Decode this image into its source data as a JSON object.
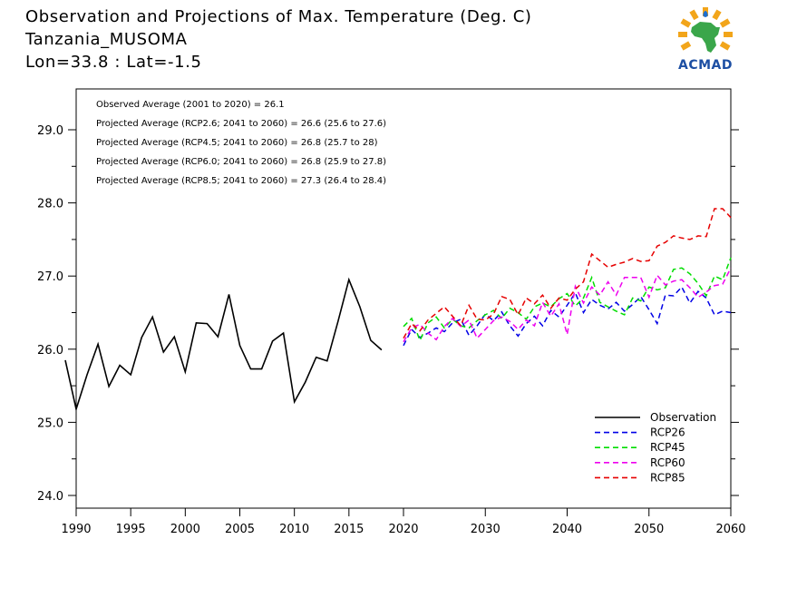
{
  "header": {
    "line1": "Observation and Projections of Max. Temperature (Deg. C)",
    "line2": "Tanzania_MUSOMA",
    "line3": "Lon=33.8 : Lat=-1.5"
  },
  "logo": {
    "text": "ACMAD",
    "icon": "africa-map-icon"
  },
  "chart_data": {
    "type": "line",
    "title": "Observation and Projections of Max. Temperature (Deg. C)",
    "xlabel": "",
    "ylabel": "",
    "xlim": [
      1990,
      2060
    ],
    "ylim": [
      23.8,
      29.5
    ],
    "x_ticks": [
      "1990",
      "1995",
      "2000",
      "2005",
      "2010",
      "2015",
      "2020",
      "2030",
      "2040",
      "2050",
      "2060"
    ],
    "x_tick_values": [
      1990,
      1995,
      2000,
      2005,
      2010,
      2015,
      2020,
      2030,
      2040,
      2050,
      2060
    ],
    "y_ticks": [
      "24.0",
      "25.0",
      "26.0",
      "27.0",
      "28.0",
      "29.0"
    ],
    "y_tick_values": [
      24,
      25,
      26,
      27,
      28,
      29
    ],
    "annotations": [
      "Observed Average (2001 to 2020) = 26.1",
      "Projected Average (RCP2.6; 2041 to 2060) = 26.6 (25.6 to 27.6)",
      "Projected Average (RCP4.5; 2041 to 2060) = 26.8 (25.7 to 28)",
      "Projected Average (RCP6.0; 2041 to 2060) = 26.8 (25.9 to 27.8)",
      "Projected Average (RCP8.5; 2041 to 2060) = 27.3 (26.4 to 28.4)"
    ],
    "legend_position": "bottom-right",
    "series": [
      {
        "name": "Observation",
        "color": "#000000",
        "dash": "solid",
        "x": [
          1989,
          1990,
          1991,
          1992,
          1993,
          1994,
          1995,
          1996,
          1997,
          1998,
          1999,
          2000,
          2001,
          2002,
          2003,
          2004,
          2005,
          2006,
          2007,
          2008,
          2009,
          2010,
          2011,
          2012,
          2013,
          2014,
          2015,
          2016,
          2017,
          2018,
          2019
        ],
        "values": [
          25.85,
          25.18,
          25.65,
          26.07,
          25.49,
          25.78,
          25.65,
          26.16,
          26.44,
          25.96,
          26.17,
          25.69,
          26.36,
          26.35,
          26.17,
          26.75,
          26.05,
          25.73,
          25.73,
          26.11,
          26.22,
          25.28,
          25.55,
          25.89,
          25.84,
          26.38,
          26.95,
          26.58,
          26.12,
          25.99,
          null
        ]
      },
      {
        "name": "RCP26",
        "color": "#0000e6",
        "dash": "dashed",
        "x": [
          2020,
          2021,
          2022,
          2023,
          2024,
          2025,
          2026,
          2027,
          2028,
          2029,
          2030,
          2031,
          2032,
          2033,
          2034,
          2035,
          2036,
          2037,
          2038,
          2039,
          2040,
          2041,
          2042,
          2043,
          2044,
          2045,
          2046,
          2047,
          2048,
          2049,
          2050,
          2051,
          2052,
          2053,
          2054,
          2055,
          2056,
          2057,
          2058,
          2059,
          2060
        ],
        "values": [
          26.05,
          26.27,
          26.16,
          26.22,
          26.29,
          26.24,
          26.36,
          26.41,
          26.19,
          26.32,
          26.48,
          26.39,
          26.51,
          26.32,
          26.18,
          26.35,
          26.45,
          26.32,
          26.53,
          26.44,
          26.6,
          26.77,
          26.5,
          26.68,
          26.6,
          26.55,
          26.64,
          26.52,
          26.61,
          26.72,
          26.54,
          26.35,
          26.74,
          26.73,
          26.85,
          26.63,
          26.79,
          26.7,
          26.47,
          26.52,
          26.5
        ]
      },
      {
        "name": "RCP45",
        "color": "#00dd00",
        "dash": "dashed",
        "x": [
          2020,
          2021,
          2022,
          2023,
          2024,
          2025,
          2026,
          2027,
          2028,
          2029,
          2030,
          2031,
          2032,
          2033,
          2034,
          2035,
          2036,
          2037,
          2038,
          2039,
          2040,
          2041,
          2042,
          2043,
          2044,
          2045,
          2046,
          2047,
          2048,
          2049,
          2050,
          2051,
          2052,
          2053,
          2054,
          2055,
          2056,
          2057,
          2058,
          2059,
          2060
        ],
        "values": [
          26.31,
          26.42,
          26.12,
          26.36,
          26.44,
          26.29,
          26.41,
          26.32,
          26.29,
          26.39,
          26.47,
          26.53,
          26.42,
          26.56,
          26.5,
          26.41,
          26.58,
          26.63,
          26.58,
          26.69,
          26.76,
          26.59,
          26.7,
          26.98,
          26.64,
          26.58,
          26.52,
          26.47,
          26.7,
          26.66,
          26.85,
          26.81,
          26.84,
          27.09,
          27.11,
          27.03,
          26.9,
          26.73,
          27.0,
          26.95,
          27.25
        ]
      },
      {
        "name": "RCP60",
        "color": "#ee00ee",
        "dash": "dashed",
        "x": [
          2020,
          2021,
          2022,
          2023,
          2024,
          2025,
          2026,
          2027,
          2028,
          2029,
          2030,
          2031,
          2032,
          2033,
          2034,
          2035,
          2036,
          2037,
          2038,
          2039,
          2040,
          2041,
          2042,
          2043,
          2044,
          2045,
          2046,
          2047,
          2048,
          2049,
          2050,
          2051,
          2052,
          2053,
          2054,
          2055,
          2056,
          2057,
          2058,
          2059,
          2060
        ],
        "values": [
          26.1,
          26.29,
          26.34,
          26.22,
          26.13,
          26.31,
          26.42,
          26.31,
          26.4,
          26.15,
          26.27,
          26.39,
          26.44,
          26.38,
          26.27,
          26.4,
          26.32,
          26.64,
          26.45,
          26.62,
          26.2,
          26.86,
          26.63,
          26.85,
          26.74,
          26.92,
          26.74,
          26.98,
          26.98,
          26.98,
          26.71,
          27.01,
          26.88,
          26.93,
          26.95,
          26.84,
          26.71,
          26.78,
          26.87,
          26.89,
          27.11
        ]
      },
      {
        "name": "RCP85",
        "color": "#e60000",
        "dash": "dashed",
        "x": [
          2020,
          2021,
          2022,
          2023,
          2024,
          2025,
          2026,
          2027,
          2028,
          2029,
          2030,
          2031,
          2032,
          2033,
          2034,
          2035,
          2036,
          2037,
          2038,
          2039,
          2040,
          2041,
          2042,
          2043,
          2044,
          2045,
          2046,
          2047,
          2048,
          2049,
          2050,
          2051,
          2052,
          2053,
          2054,
          2055,
          2056,
          2057,
          2058,
          2059,
          2060
        ],
        "values": [
          26.15,
          26.35,
          26.25,
          26.4,
          26.49,
          26.58,
          26.45,
          26.32,
          26.6,
          26.41,
          26.4,
          26.48,
          26.72,
          26.68,
          26.47,
          26.7,
          26.62,
          26.74,
          26.56,
          26.7,
          26.67,
          26.82,
          26.92,
          27.3,
          27.21,
          27.12,
          27.16,
          27.19,
          27.24,
          27.2,
          27.21,
          27.41,
          27.46,
          27.55,
          27.52,
          27.5,
          27.55,
          27.54,
          27.92,
          27.92,
          27.8
        ]
      }
    ]
  }
}
